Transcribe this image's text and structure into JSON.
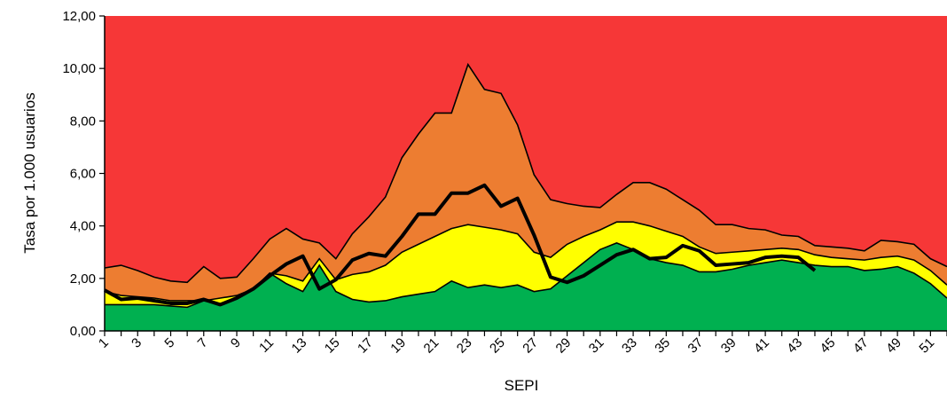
{
  "chart_data": {
    "type": "area",
    "xlabel": "SEPI",
    "ylabel": "Tasa  por 1.000 usuarios",
    "ylim": [
      0,
      12
    ],
    "xlim": [
      1,
      52
    ],
    "y_ticks": [
      "0,00",
      "2,00",
      "4,00",
      "6,00",
      "8,00",
      "10,00",
      "12,00"
    ],
    "x_tick_labels": [
      "1",
      "3",
      "5",
      "7",
      "9",
      "11",
      "13",
      "15",
      "17",
      "19",
      "21",
      "23",
      "25",
      "27",
      "29",
      "31",
      "33",
      "35",
      "37",
      "39",
      "41",
      "43",
      "45",
      "47",
      "49",
      "51"
    ],
    "x": [
      1,
      2,
      3,
      4,
      5,
      6,
      7,
      8,
      9,
      10,
      11,
      12,
      13,
      14,
      15,
      16,
      17,
      18,
      19,
      20,
      21,
      22,
      23,
      24,
      25,
      26,
      27,
      28,
      29,
      30,
      31,
      32,
      33,
      34,
      35,
      36,
      37,
      38,
      39,
      40,
      41,
      42,
      43,
      44,
      45,
      46,
      47,
      48,
      49,
      50,
      51,
      52
    ],
    "series": [
      {
        "color": "#00b050",
        "values": [
          1.0,
          1.0,
          1.0,
          1.0,
          0.95,
          0.9,
          1.15,
          1.0,
          1.3,
          1.6,
          2.2,
          1.8,
          1.5,
          2.5,
          1.5,
          1.2,
          1.1,
          1.15,
          1.3,
          1.4,
          1.5,
          1.9,
          1.65,
          1.75,
          1.65,
          1.75,
          1.5,
          1.6,
          2.1,
          2.6,
          3.1,
          3.35,
          3.1,
          2.75,
          2.6,
          2.5,
          2.25,
          2.25,
          2.35,
          2.5,
          2.6,
          2.7,
          2.6,
          2.5,
          2.45,
          2.45,
          2.3,
          2.35,
          2.45,
          2.2,
          1.8,
          1.25
        ]
      },
      {
        "color": "#ffff00",
        "values": [
          1.5,
          1.35,
          1.3,
          1.25,
          1.15,
          1.15,
          1.15,
          1.25,
          1.35,
          1.6,
          2.2,
          2.1,
          1.9,
          2.75,
          1.95,
          2.15,
          2.25,
          2.5,
          3.0,
          3.3,
          3.6,
          3.9,
          4.05,
          3.95,
          3.85,
          3.7,
          3.0,
          2.8,
          3.3,
          3.6,
          3.85,
          4.15,
          4.15,
          4.0,
          3.8,
          3.6,
          3.2,
          2.95,
          3.0,
          3.05,
          3.1,
          3.15,
          3.1,
          2.9,
          2.8,
          2.75,
          2.7,
          2.8,
          2.85,
          2.7,
          2.3,
          1.75
        ]
      },
      {
        "color": "#ed7d31",
        "values": [
          2.4,
          2.5,
          2.3,
          2.05,
          1.9,
          1.85,
          2.45,
          2.0,
          2.05,
          2.75,
          3.5,
          3.9,
          3.5,
          3.35,
          2.75,
          3.7,
          4.35,
          5.1,
          6.6,
          7.5,
          8.3,
          8.3,
          10.15,
          9.2,
          9.05,
          7.85,
          5.95,
          5.0,
          4.85,
          4.75,
          4.7,
          5.2,
          5.65,
          5.65,
          5.4,
          5.0,
          4.6,
          4.05,
          4.05,
          3.9,
          3.85,
          3.65,
          3.6,
          3.25,
          3.2,
          3.15,
          3.05,
          3.45,
          3.4,
          3.3,
          2.75,
          2.45
        ]
      },
      {
        "color": "#f63737",
        "values": [
          12,
          12,
          12,
          12,
          12,
          12,
          12,
          12,
          12,
          12,
          12,
          12,
          12,
          12,
          12,
          12,
          12,
          12,
          12,
          12,
          12,
          12,
          12,
          12,
          12,
          12,
          12,
          12,
          12,
          12,
          12,
          12,
          12,
          12,
          12,
          12,
          12,
          12,
          12,
          12,
          12,
          12,
          12,
          12,
          12,
          12,
          12,
          12,
          12,
          12,
          12,
          12
        ]
      }
    ],
    "line": {
      "color": "#000000",
      "values": [
        1.55,
        1.2,
        1.25,
        1.15,
        1.05,
        1.05,
        1.2,
        1.0,
        1.25,
        1.6,
        2.1,
        2.55,
        2.85,
        1.6,
        1.95,
        2.7,
        2.95,
        2.85,
        3.6,
        4.45,
        4.45,
        5.25,
        5.25,
        5.55,
        4.75,
        5.05,
        3.65,
        2.05,
        1.85,
        2.1,
        2.5,
        2.9,
        3.1,
        2.75,
        2.8,
        3.25,
        3.05,
        2.5,
        2.55,
        2.6,
        2.8,
        2.85,
        2.8,
        2.3
      ]
    }
  }
}
